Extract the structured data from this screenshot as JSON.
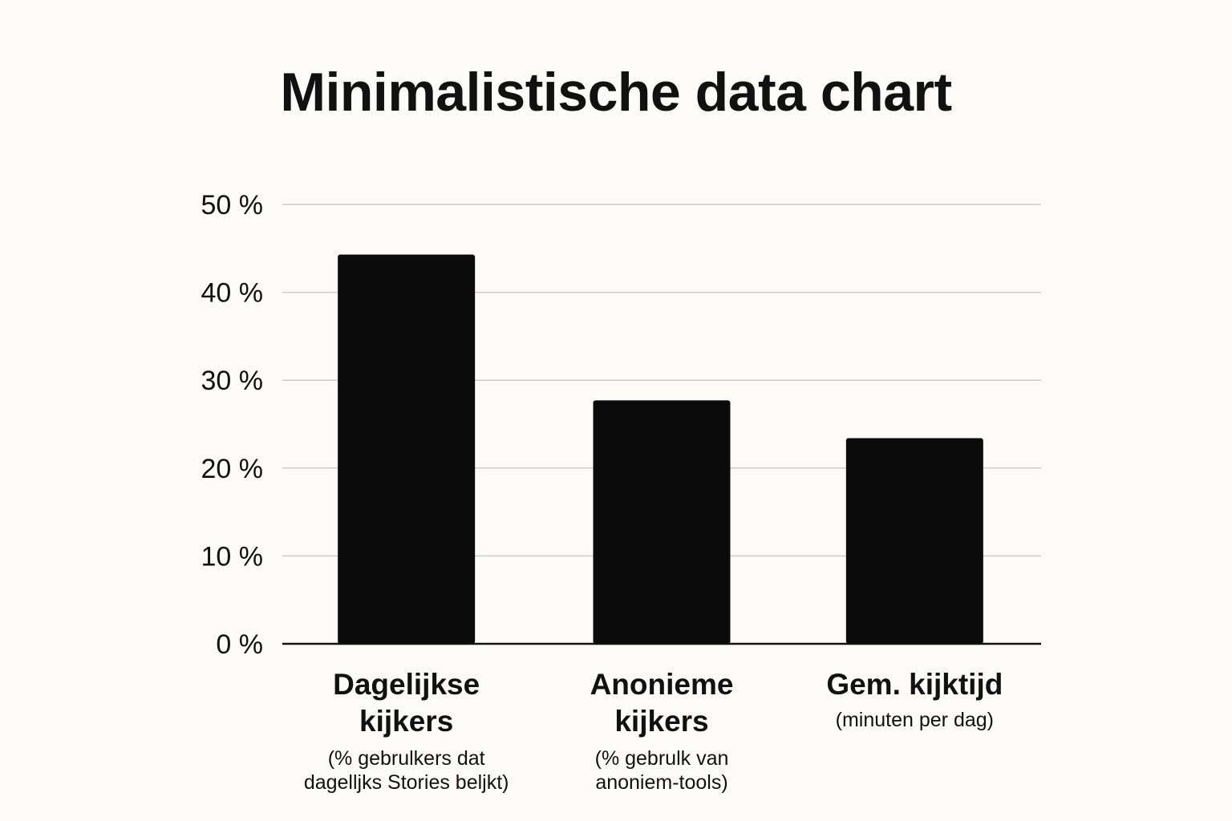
{
  "colors": {
    "background": "#fcfbf7",
    "bar": "#0b0b0b",
    "grid": "#cccccc",
    "axis": "#111111",
    "text": "#111111"
  },
  "chart_data": {
    "type": "bar",
    "title": "Minimalistische data chart",
    "xlabel": "",
    "ylabel": "",
    "ylim": [
      0,
      50
    ],
    "yticks": [
      0,
      10,
      20,
      30,
      40,
      50
    ],
    "ytick_labels": [
      "0 %",
      "10 %",
      "20 %",
      "30 %",
      "40 %",
      "50 %"
    ],
    "grid": true,
    "categories": [
      {
        "label_lines": [
          "Dagelijkse",
          "kijkers"
        ],
        "sub_lines": [
          "(% gebrulkers dat",
          "dagelljks Stories beljkt)"
        ]
      },
      {
        "label_lines": [
          "Anonieme",
          "kijkers"
        ],
        "sub_lines": [
          "(% gebrulk van",
          "anoniem-tools)"
        ]
      },
      {
        "label_lines": [
          "Gem. kijktijd"
        ],
        "sub_lines": [
          "(minuten per dag)"
        ]
      }
    ],
    "values": [
      44.3,
      27.7,
      23.4
    ]
  }
}
